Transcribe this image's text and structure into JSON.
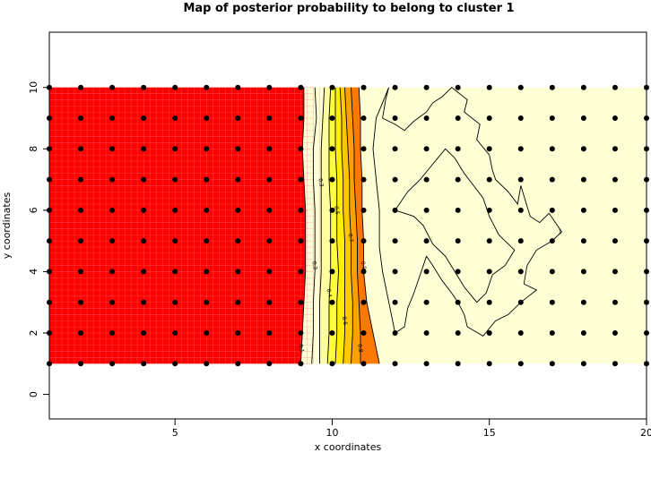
{
  "chart_data": {
    "type": "heatmap",
    "title": "Map of posterior probability to belong to cluster  1",
    "xlabel": "x coordinates",
    "ylabel": "y coordinates",
    "xlim": [
      1,
      20
    ],
    "ylim": [
      -0.8,
      11.8
    ],
    "x_ticks": [
      5,
      10,
      15,
      20
    ],
    "y_ticks": [
      0,
      2,
      4,
      6,
      8,
      10
    ],
    "x_tick_labels": [
      "5",
      "10",
      "15",
      "20"
    ],
    "y_tick_labels": [
      "0",
      "2",
      "4",
      "6",
      "8",
      "10"
    ],
    "grid": false,
    "field_extent": {
      "x": [
        1,
        20
      ],
      "y": [
        1,
        10
      ]
    },
    "color_scale": [
      {
        "level": 1.0,
        "color": "#ff0000"
      },
      {
        "level": 0.9,
        "color": "#ff2800"
      },
      {
        "level": 0.8,
        "color": "#ff5000"
      },
      {
        "level": 0.7,
        "color": "#ff7800"
      },
      {
        "level": 0.6,
        "color": "#ffa000"
      },
      {
        "level": 0.5,
        "color": "#ffc800"
      },
      {
        "level": 0.4,
        "color": "#ffee00"
      },
      {
        "level": 0.3,
        "color": "#ffff40"
      },
      {
        "level": 0.2,
        "color": "#ffffa0"
      },
      {
        "level": 0.0,
        "color": "#ffffd6"
      }
    ],
    "contour_lines": [
      {
        "level": 0.1,
        "label": "0.1",
        "points": [
          [
            9.0,
            1.0
          ],
          [
            9.05,
            2.0
          ],
          [
            9.1,
            3.0
          ],
          [
            9.15,
            4.0
          ],
          [
            9.15,
            5.0
          ],
          [
            9.15,
            6.0
          ],
          [
            9.1,
            7.0
          ],
          [
            9.05,
            8.0
          ],
          [
            9.1,
            9.0
          ],
          [
            9.1,
            10.0
          ]
        ]
      },
      {
        "level": 0.2,
        "label": "0.2",
        "points": [
          [
            9.35,
            1.0
          ],
          [
            9.4,
            2.0
          ],
          [
            9.4,
            3.0
          ],
          [
            9.45,
            4.0
          ],
          [
            9.45,
            5.0
          ],
          [
            9.45,
            6.0
          ],
          [
            9.4,
            7.0
          ],
          [
            9.4,
            8.0
          ],
          [
            9.5,
            9.0
          ],
          [
            9.45,
            10.0
          ]
        ]
      },
      {
        "level": 0.3,
        "label": "0.3",
        "points": [
          [
            9.6,
            1.0
          ],
          [
            9.6,
            2.0
          ],
          [
            9.6,
            3.0
          ],
          [
            9.65,
            4.0
          ],
          [
            9.65,
            5.0
          ],
          [
            9.65,
            6.0
          ],
          [
            9.65,
            7.0
          ],
          [
            9.65,
            8.0
          ],
          [
            9.7,
            9.0
          ],
          [
            9.75,
            10.0
          ]
        ]
      },
      {
        "level": 0.4,
        "label": "0.4",
        "points": [
          [
            9.85,
            1.0
          ],
          [
            9.9,
            2.0
          ],
          [
            9.9,
            3.0
          ],
          [
            9.95,
            4.0
          ],
          [
            9.95,
            5.0
          ],
          [
            9.95,
            6.0
          ],
          [
            9.9,
            7.0
          ],
          [
            9.9,
            8.0
          ],
          [
            9.9,
            9.0
          ],
          [
            9.95,
            10.0
          ]
        ]
      },
      {
        "level": 0.5,
        "label": "0.5",
        "points": [
          [
            10.1,
            1.0
          ],
          [
            10.15,
            2.0
          ],
          [
            10.15,
            3.0
          ],
          [
            10.2,
            4.0
          ],
          [
            10.15,
            5.0
          ],
          [
            10.15,
            6.0
          ],
          [
            10.15,
            7.0
          ],
          [
            10.1,
            8.0
          ],
          [
            10.1,
            9.0
          ],
          [
            10.1,
            10.0
          ]
        ]
      },
      {
        "level": 0.6,
        "label": "0.6",
        "points": [
          [
            10.35,
            1.0
          ],
          [
            10.4,
            2.0
          ],
          [
            10.4,
            3.0
          ],
          [
            10.4,
            4.0
          ],
          [
            10.4,
            5.0
          ],
          [
            10.35,
            6.0
          ],
          [
            10.35,
            7.0
          ],
          [
            10.3,
            8.0
          ],
          [
            10.3,
            9.0
          ],
          [
            10.25,
            10.0
          ]
        ]
      },
      {
        "level": 0.7,
        "label": "0.7",
        "points": [
          [
            10.6,
            1.0
          ],
          [
            10.65,
            2.0
          ],
          [
            10.65,
            3.0
          ],
          [
            10.6,
            4.0
          ],
          [
            10.6,
            5.0
          ],
          [
            10.55,
            6.0
          ],
          [
            10.55,
            7.0
          ],
          [
            10.5,
            8.0
          ],
          [
            10.45,
            9.0
          ],
          [
            10.4,
            10.0
          ]
        ]
      },
      {
        "level": 0.8,
        "label": "0.8",
        "points": [
          [
            10.9,
            1.0
          ],
          [
            10.9,
            2.0
          ],
          [
            10.85,
            3.0
          ],
          [
            10.8,
            4.0
          ],
          [
            10.8,
            5.0
          ],
          [
            10.75,
            6.0
          ],
          [
            10.7,
            7.0
          ],
          [
            10.7,
            8.0
          ],
          [
            10.65,
            9.0
          ],
          [
            10.6,
            10.0
          ]
        ]
      },
      {
        "level": 0.9,
        "label": "0.9",
        "points": [
          [
            11.5,
            1.0
          ],
          [
            11.3,
            2.0
          ],
          [
            11.1,
            3.0
          ],
          [
            11.0,
            4.0
          ],
          [
            11.0,
            5.0
          ],
          [
            10.95,
            6.0
          ],
          [
            10.95,
            7.0
          ],
          [
            10.9,
            8.0
          ],
          [
            10.9,
            9.0
          ],
          [
            10.85,
            10.0
          ]
        ]
      },
      {
        "level": 1.0,
        "label": "1",
        "points": [
          [
            11.8,
            10.0
          ],
          [
            11.7,
            9.6
          ],
          [
            11.6,
            9.0
          ],
          [
            12.0,
            8.8
          ],
          [
            12.3,
            8.6
          ],
          [
            12.6,
            8.9
          ],
          [
            13.0,
            9.2
          ],
          [
            13.2,
            9.5
          ],
          [
            13.5,
            9.7
          ],
          [
            13.8,
            10.0
          ],
          [
            14.3,
            9.6
          ],
          [
            14.2,
            9.2
          ],
          [
            14.7,
            8.8
          ],
          [
            14.6,
            8.3
          ],
          [
            15.0,
            7.8
          ],
          [
            15.1,
            7.3
          ],
          [
            15.2,
            7.0
          ],
          [
            15.6,
            6.6
          ],
          [
            15.9,
            6.2
          ],
          [
            16.0,
            6.8
          ],
          [
            16.3,
            5.8
          ],
          [
            16.6,
            5.6
          ],
          [
            16.9,
            5.9
          ],
          [
            17.3,
            5.3
          ],
          [
            17.0,
            5.0
          ],
          [
            16.5,
            4.7
          ],
          [
            16.2,
            4.2
          ],
          [
            16.1,
            3.6
          ],
          [
            16.5,
            3.4
          ],
          [
            16.0,
            3.0
          ],
          [
            15.6,
            2.6
          ],
          [
            15.2,
            2.4
          ],
          [
            14.8,
            1.9
          ],
          [
            14.3,
            2.2
          ],
          [
            14.2,
            2.6
          ],
          [
            14.0,
            3.0
          ],
          [
            13.8,
            3.3
          ],
          [
            13.5,
            3.7
          ],
          [
            13.2,
            4.2
          ],
          [
            13.0,
            4.5
          ],
          [
            12.8,
            3.9
          ],
          [
            12.6,
            3.3
          ],
          [
            12.4,
            2.8
          ],
          [
            12.3,
            2.2
          ],
          [
            12.0,
            2.0
          ],
          [
            11.9,
            2.5
          ],
          [
            11.8,
            3.0
          ],
          [
            11.7,
            3.5
          ],
          [
            11.6,
            4.0
          ],
          [
            11.5,
            4.8
          ],
          [
            11.5,
            6.0
          ],
          [
            11.4,
            7.0
          ],
          [
            11.3,
            8.0
          ],
          [
            11.4,
            9.0
          ],
          [
            11.6,
            9.5
          ],
          [
            11.8,
            10.0
          ]
        ]
      },
      {
        "level": 1.0,
        "label": "",
        "points": [
          [
            12.0,
            6.0
          ],
          [
            12.4,
            6.6
          ],
          [
            12.8,
            7.0
          ],
          [
            13.2,
            7.5
          ],
          [
            13.6,
            8.0
          ],
          [
            13.9,
            7.7
          ],
          [
            14.2,
            7.2
          ],
          [
            14.5,
            6.8
          ],
          [
            14.8,
            6.4
          ],
          [
            15.0,
            5.8
          ],
          [
            15.3,
            5.2
          ],
          [
            15.8,
            4.7
          ],
          [
            15.5,
            4.2
          ],
          [
            15.1,
            3.9
          ],
          [
            14.9,
            3.3
          ],
          [
            14.6,
            3.0
          ],
          [
            14.2,
            3.5
          ],
          [
            13.9,
            4.0
          ],
          [
            13.6,
            4.5
          ],
          [
            13.2,
            4.9
          ],
          [
            12.9,
            5.5
          ],
          [
            12.6,
            5.8
          ],
          [
            12.3,
            5.9
          ],
          [
            12.0,
            6.0
          ]
        ]
      }
    ],
    "points": {
      "x": [
        1,
        2,
        3,
        4,
        5,
        6,
        7,
        8,
        9,
        10,
        11,
        12,
        13,
        14,
        15,
        16,
        17,
        18,
        19,
        20
      ],
      "y": [
        1,
        2,
        3,
        4,
        5,
        6,
        7,
        8,
        9,
        10
      ],
      "color": "#000000"
    }
  }
}
